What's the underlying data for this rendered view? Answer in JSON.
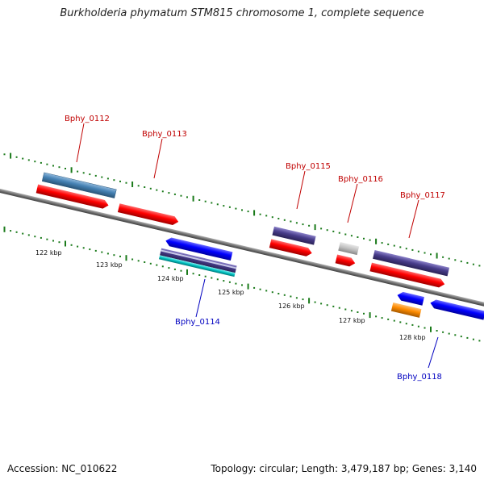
{
  "title": "Burkholderia phymatum STM815 chromosome 1, complete sequence",
  "footer": {
    "accession": "Accession: NC_010622",
    "stats": "Topology: circular; Length: 3,479,187 bp; Genes: 3,140"
  },
  "colors": {
    "backbone": "#808080",
    "tick": "#1a7a1a",
    "label_forward": "#c00000",
    "label_reverse": "#0000c0",
    "cds_red": "#ff0000",
    "cds_blue": "#0000ff",
    "slate": "#4682b4",
    "purple": "#483d8b",
    "grey": "#c0c0c0",
    "orange": "#ff8c00",
    "cyan": "#00c0c0"
  },
  "scale_labels": [
    "122 kbp",
    "123 kbp",
    "124 kbp",
    "125 kbp",
    "126 kbp",
    "127 kbp",
    "128 kbp"
  ],
  "gene_labels": [
    {
      "name": "Bphy_0112",
      "strand": "forward"
    },
    {
      "name": "Bphy_0113",
      "strand": "forward"
    },
    {
      "name": "Bphy_0115",
      "strand": "forward"
    },
    {
      "name": "Bphy_0116",
      "strand": "forward"
    },
    {
      "name": "Bphy_0117",
      "strand": "forward"
    },
    {
      "name": "Bphy_0114",
      "strand": "reverse"
    },
    {
      "name": "Bphy_0118",
      "strand": "reverse"
    }
  ],
  "features": [
    {
      "id": "0112-gene",
      "color": "slate",
      "strand": "forward"
    },
    {
      "id": "0112-cds",
      "color": "cds_red",
      "strand": "forward"
    },
    {
      "id": "0113-cds",
      "color": "cds_red",
      "strand": "forward"
    },
    {
      "id": "0114-cds",
      "color": "cds_blue",
      "strand": "reverse"
    },
    {
      "id": "0114-gene",
      "color": "purple",
      "strand": "reverse"
    },
    {
      "id": "0114-misc",
      "color": "cyan",
      "strand": "reverse"
    },
    {
      "id": "0115-gene",
      "color": "purple",
      "strand": "forward"
    },
    {
      "id": "0115-cds",
      "color": "cds_red",
      "strand": "forward"
    },
    {
      "id": "0116-gene",
      "color": "grey",
      "strand": "forward"
    },
    {
      "id": "0116-cds",
      "color": "cds_red",
      "strand": "forward"
    },
    {
      "id": "0117-gene",
      "color": "purple",
      "strand": "forward"
    },
    {
      "id": "0117-cds",
      "color": "cds_red",
      "strand": "forward"
    },
    {
      "id": "0118-cds",
      "color": "cds_blue",
      "strand": "reverse"
    },
    {
      "id": "0118-gene",
      "color": "orange",
      "strand": "reverse"
    },
    {
      "id": "0119-cds",
      "color": "cds_blue",
      "strand": "reverse"
    }
  ]
}
